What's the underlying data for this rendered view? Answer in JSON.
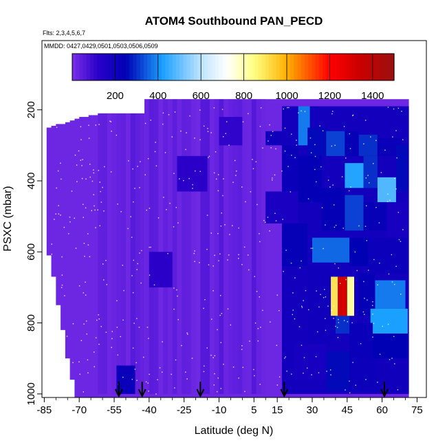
{
  "chart_data": {
    "type": "heatmap",
    "title": "ATOM4 Southbound PAN_PECD",
    "subtitle_flights": "Flts: 2,3,4,5,6,7",
    "subtitle_dates": "MMDD: 0427,0429,0501,0503,0506,0509",
    "xlabel": "Latitude (deg N)",
    "ylabel": "PSXC (mbar)",
    "x_ticks": [
      -85,
      -70,
      -55,
      -40,
      -25,
      -10,
      5,
      15,
      30,
      45,
      60,
      75
    ],
    "x_tick_labels": [
      "-85",
      "-70",
      "-55",
      "-40",
      "-25",
      "-10",
      "5",
      "15",
      "30",
      "45",
      "60",
      "75"
    ],
    "x_range": [
      -86,
      79
    ],
    "y_ticks": [
      200,
      400,
      600,
      800,
      1000
    ],
    "y_tick_labels": [
      "200",
      "400",
      "600",
      "800",
      "1000"
    ],
    "y_range": [
      1010,
      5
    ],
    "colorbar": {
      "range": [
        0,
        1500
      ],
      "ticks": [
        200,
        400,
        600,
        800,
        1000,
        1200,
        1400
      ],
      "tick_labels": [
        "200",
        "400",
        "600",
        "800",
        "1000",
        "1200",
        "1400"
      ],
      "stops": [
        {
          "v": 0,
          "c": "#7a2fe8"
        },
        {
          "v": 120,
          "c": "#2a00c8"
        },
        {
          "v": 250,
          "c": "#0000b4"
        },
        {
          "v": 420,
          "c": "#1aa0ff"
        },
        {
          "v": 600,
          "c": "#bfe4ff"
        },
        {
          "v": 720,
          "c": "#ffffff"
        },
        {
          "v": 850,
          "c": "#ffff80"
        },
        {
          "v": 1000,
          "c": "#ffb000"
        },
        {
          "v": 1200,
          "c": "#ff0000"
        },
        {
          "v": 1350,
          "c": "#c80000"
        },
        {
          "v": 1500,
          "c": "#9a1010"
        }
      ]
    },
    "profile_arrows_lat": [
      -53,
      -43,
      -18,
      18,
      61
    ],
    "coverage": {
      "p_top_north": 170,
      "p_top_south": 210,
      "lat_north_edge": 71.5,
      "lat_south_edge": -84
    },
    "cells": [
      {
        "lat": [
          10,
          17
        ],
        "p": [
          260,
          300
        ],
        "v": 200
      },
      {
        "lat": [
          10,
          24
        ],
        "p": [
          430,
          520
        ],
        "v": 170
      },
      {
        "lat": [
          17,
          24
        ],
        "p": [
          300,
          430
        ],
        "v": 220
      },
      {
        "lat": [
          17,
          28
        ],
        "p": [
          520,
          640
        ],
        "v": 230
      },
      {
        "lat": [
          24,
          29
        ],
        "p": [
          190,
          300
        ],
        "v": 380
      },
      {
        "lat": [
          28,
          36
        ],
        "p": [
          250,
          330
        ],
        "v": 260
      },
      {
        "lat": [
          24,
          34
        ],
        "p": [
          330,
          460
        ],
        "v": 240
      },
      {
        "lat": [
          36,
          44
        ],
        "p": [
          260,
          330
        ],
        "v": 320
      },
      {
        "lat": [
          44,
          50
        ],
        "p": [
          260,
          330
        ],
        "v": 230
      },
      {
        "lat": [
          50,
          58
        ],
        "p": [
          270,
          330
        ],
        "v": 300
      },
      {
        "lat": [
          58,
          68
        ],
        "p": [
          280,
          330
        ],
        "v": 220
      },
      {
        "lat": [
          44,
          52
        ],
        "p": [
          350,
          420
        ],
        "v": 430
      },
      {
        "lat": [
          52,
          58
        ],
        "p": [
          330,
          420
        ],
        "v": 300
      },
      {
        "lat": [
          58,
          66
        ],
        "p": [
          390,
          460
        ],
        "v": 480
      },
      {
        "lat": [
          66,
          71
        ],
        "p": [
          300,
          430
        ],
        "v": 260
      },
      {
        "lat": [
          34,
          44
        ],
        "p": [
          420,
          540
        ],
        "v": 240
      },
      {
        "lat": [
          44,
          52
        ],
        "p": [
          440,
          540
        ],
        "v": 320
      },
      {
        "lat": [
          52,
          62
        ],
        "p": [
          460,
          540
        ],
        "v": 230
      },
      {
        "lat": [
          62,
          71
        ],
        "p": [
          460,
          560
        ],
        "v": 180
      },
      {
        "lat": [
          30,
          46
        ],
        "p": [
          560,
          630
        ],
        "v": 360
      },
      {
        "lat": [
          46,
          54
        ],
        "p": [
          560,
          640
        ],
        "v": 250
      },
      {
        "lat": [
          54,
          71
        ],
        "p": [
          560,
          660
        ],
        "v": 210
      },
      {
        "lat": [
          28,
          38
        ],
        "p": [
          640,
          760
        ],
        "v": 200
      },
      {
        "lat": [
          50,
          57
        ],
        "p": [
          660,
          780
        ],
        "v": 230
      },
      {
        "lat": [
          57,
          70
        ],
        "p": [
          680,
          760
        ],
        "v": 380
      },
      {
        "lat": [
          55,
          71
        ],
        "p": [
          760,
          830
        ],
        "v": 420
      },
      {
        "lat": [
          40,
          46
        ],
        "p": [
          760,
          830
        ],
        "v": 300
      },
      {
        "lat": [
          28,
          40
        ],
        "p": [
          760,
          860
        ],
        "v": 200
      },
      {
        "lat": [
          46,
          56
        ],
        "p": [
          800,
          900
        ],
        "v": 220
      },
      {
        "lat": [
          56,
          71
        ],
        "p": [
          830,
          900
        ],
        "v": 250
      },
      {
        "lat": [
          22,
          36
        ],
        "p": [
          860,
          960
        ],
        "v": 180
      },
      {
        "lat": [
          36,
          46
        ],
        "p": [
          880,
          990
        ],
        "v": 260
      },
      {
        "lat": [
          46,
          58
        ],
        "p": [
          900,
          990
        ],
        "v": 210
      },
      {
        "lat": [
          58,
          71
        ],
        "p": [
          900,
          990
        ],
        "v": 200
      },
      {
        "lat": [
          38,
          41
        ],
        "p": [
          670,
          780
        ],
        "v": 900
      },
      {
        "lat": [
          41,
          45
        ],
        "p": [
          670,
          780
        ],
        "v": 1320
      },
      {
        "lat": [
          45,
          48
        ],
        "p": [
          670,
          780
        ],
        "v": 820
      },
      {
        "lat": [
          -40,
          -30
        ],
        "p": [
          600,
          700
        ],
        "v": 120
      },
      {
        "lat": [
          -28,
          -15
        ],
        "p": [
          330,
          430
        ],
        "v": 120
      },
      {
        "lat": [
          -54,
          -46
        ],
        "p": [
          920,
          1000
        ],
        "v": 220
      },
      {
        "lat": [
          -10,
          0
        ],
        "p": [
          220,
          300
        ],
        "v": 110
      }
    ]
  }
}
